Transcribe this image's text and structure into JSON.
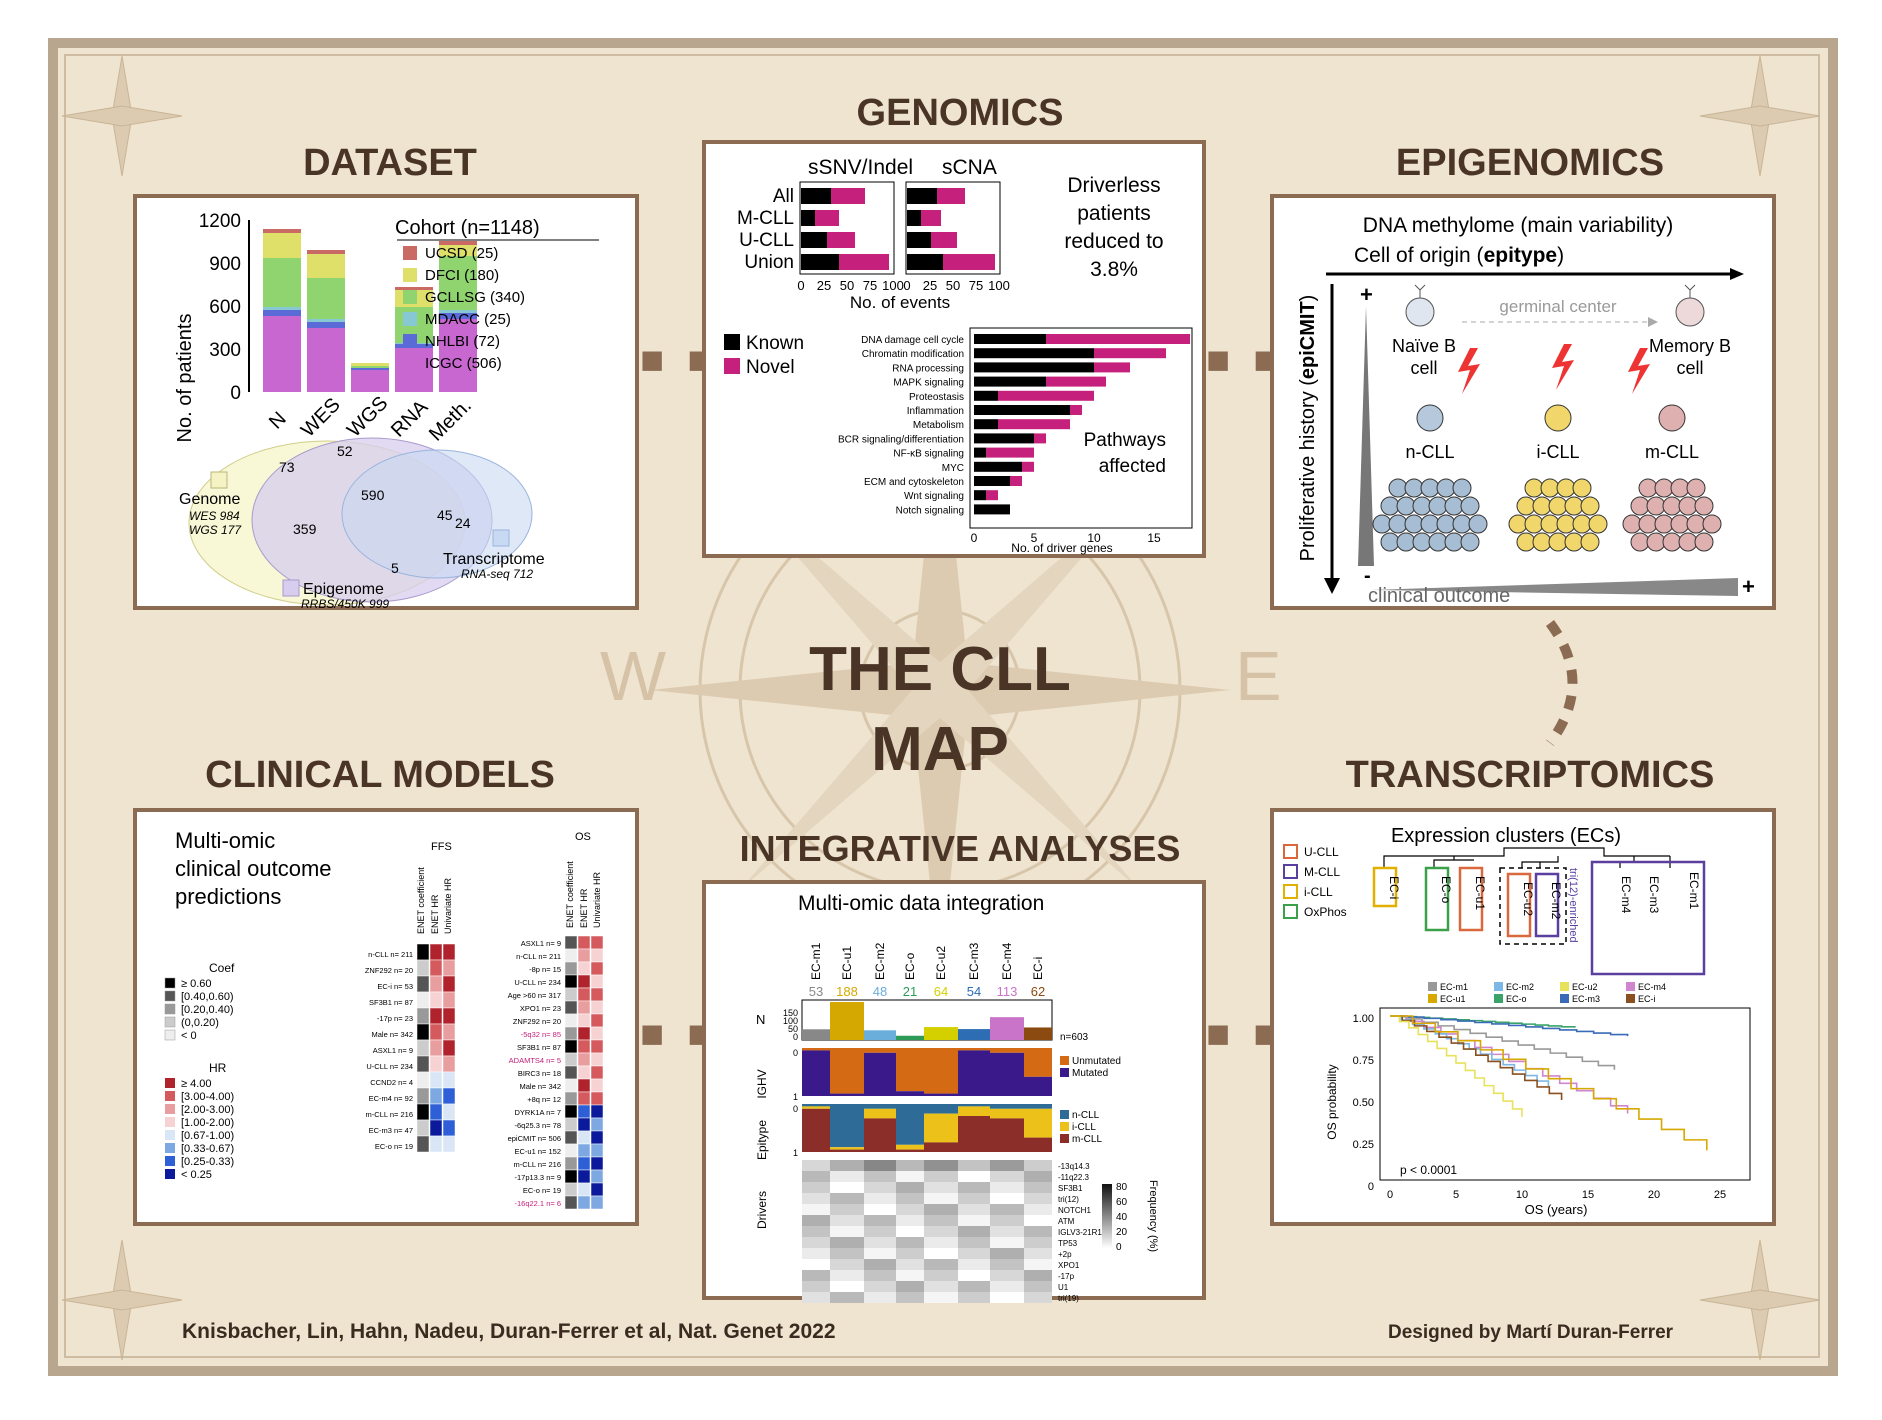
{
  "titles": {
    "dataset": "DATASET",
    "genomics": "GENOMICS",
    "epigenomics": "EPIGENOMICS",
    "clinical": "CLINICAL MODELS",
    "integrative": "INTEGRATIVE ANALYSES",
    "transcriptomics": "TRANSCRIPTOMICS",
    "center_line1": "THE CLL",
    "center_line2": "MAP"
  },
  "credits": {
    "left": "Knisbacher, Lin, Hahn, Nadeu, Duran-Ferrer et al, Nat. Genet 2022",
    "right": "Designed by Martí Duran-Ferrer"
  },
  "dataset": {
    "ylabel": "No. of patients",
    "yticks": [
      "1200",
      "900",
      "600",
      "300",
      "0"
    ],
    "categories": [
      "N",
      "WES",
      "WGS",
      "RNA",
      "Meth."
    ],
    "legend_title": "Cohort (n=1148)",
    "legend": [
      {
        "label": "UCSD (25)",
        "color": "#c96a64"
      },
      {
        "label": "DFCI (180)",
        "color": "#dfe06a"
      },
      {
        "label": "GCLLSG (340)",
        "color": "#8fd46f"
      },
      {
        "label": "MDACC (25)",
        "color": "#86c9d3"
      },
      {
        "label": "NHLBI (72)",
        "color": "#5a6ad6"
      },
      {
        "label": "ICGC (506)",
        "color": "#c867cf"
      }
    ],
    "venn": {
      "genome": "Genome",
      "genome_sub1": "WES 984",
      "genome_sub2": "WGS 177",
      "epigenome": "Epigenome",
      "epigenome_sub": "RRBS/450K 999",
      "transcriptome": "Transcriptome",
      "transcriptome_sub": "RNA-seq 712",
      "n73": "73",
      "n52": "52",
      "n590": "590",
      "n359": "359",
      "n45": "45",
      "n24": "24",
      "n5": "5"
    }
  },
  "genomics": {
    "col1": "sSNV/Indel",
    "col2": "sCNA",
    "rows": [
      "All",
      "M-CLL",
      "U-CLL",
      "Union"
    ],
    "xticks": [
      "0",
      "25",
      "50",
      "75",
      "100"
    ],
    "xlabel": "No. of events",
    "note": "Driverless patients reduced to 3.8%",
    "note1": "Driverless",
    "note2": "patients",
    "note3": "reduced to",
    "note4": "3.8%",
    "legend_known": "Known",
    "legend_novel": "Novel",
    "pathways": [
      "DNA damage cell cycle",
      "Chromatin modification",
      "RNA processing",
      "MAPK signaling",
      "Proteostasis",
      "Inflammation",
      "Metabolism",
      "BCR signaling/differentiation",
      "NF-κB signaling",
      "MYC",
      "ECM and cytoskeleton",
      "Wnt signaling",
      "Notch signaling"
    ],
    "pathways_label1": "Pathways",
    "pathways_label2": "affected",
    "pathway_xticks": [
      "0",
      "5",
      "10",
      "15"
    ],
    "pathway_xlabel": "No. of driver genes"
  },
  "epigenomics": {
    "title1": "DNA methylome (main variability)",
    "title2_pre": "Cell of origin (",
    "title2_bold": "epitype",
    "title2_post": ")",
    "yaxis_pre": "Proliferative history (",
    "yaxis_bold": "epiCMIT",
    "yaxis_post": ")",
    "germinal": "germinal center",
    "naive1": "Naïve B",
    "naive2": "cell",
    "memory1": "Memory B",
    "memory2": "cell",
    "ncll": "n-CLL",
    "icll": "i-CLL",
    "mcll": "m-CLL",
    "outcome": "clinical outcome",
    "plus": "+",
    "minus": "-"
  },
  "clinical": {
    "title1": "Multi-omic",
    "title2": "clinical outcome",
    "title3": "predictions",
    "ffs": "FFS",
    "os": "OS",
    "col_enet": "ENET coefficient",
    "col_hr": "ENET HR",
    "col_uhr": "Univariate HR",
    "coef_title": "Coef",
    "coef_items": [
      "≥ 0.60",
      "[0.40,0.60)",
      "[0.20,0.40)",
      "(0,0.20)",
      "< 0"
    ],
    "hr_title": "HR",
    "hr_items": [
      "≥ 4.00",
      "[3.00-4.00)",
      "[2.00-3.00)",
      "[1.00-2.00)",
      "[0.67-1.00)",
      "[0.33-0.67)",
      "[0.25-0.33)",
      "< 0.25"
    ],
    "ffs_rows": [
      "n-CLL  n= 211",
      "ZNF292  n= 20",
      "EC-i  n= 53",
      "SF3B1  n= 87",
      "-17p  n= 23",
      "Male  n= 342",
      "ASXL1  n= 9",
      "U-CLL  n= 234",
      "CCND2  n= 4",
      "EC-m4  n= 92",
      "m-CLL  n= 216",
      "EC-m3  n= 47",
      "EC-o  n= 19"
    ],
    "os_rows": [
      "ASXL1  n= 9",
      "n-CLL  n= 211",
      "-8p  n= 15",
      "U-CLL  n= 234",
      "Age >60  n= 317",
      "XPO1  n= 23",
      "ZNF292  n= 20",
      "-5q32  n= 85",
      "SF3B1  n= 87",
      "ADAMTS4  n= 5",
      "BIRC3  n= 18",
      "Male  n= 342",
      "+8q  n= 12",
      "DYRK1A  n= 7",
      "-6q25.3  n= 78",
      "epiCMIT  n= 506",
      "EC-u1  n= 152",
      "m-CLL  n= 216",
      "-17p13.3  n= 9",
      "EC-o  n= 19",
      "-16q22.1  n= 6"
    ]
  },
  "integrative": {
    "title": "Multi-omic data integration",
    "clusters": [
      "EC-m1",
      "EC-u1",
      "EC-m2",
      "EC-o",
      "EC-u2",
      "EC-m3",
      "EC-m4",
      "EC-i"
    ],
    "counts": [
      "53",
      "188",
      "48",
      "21",
      "64",
      "54",
      "113",
      "62"
    ],
    "count_colors": [
      "#888888",
      "#d4a800",
      "#6aaedc",
      "#2e9a58",
      "#d4d000",
      "#2c6db3",
      "#c974c8",
      "#8b4a10"
    ],
    "n_label": "N",
    "n_ticks": [
      "150",
      "100",
      "50",
      "0"
    ],
    "n_total": "n=603",
    "ighv": "IGHV",
    "unmutated": "Unmutated",
    "mutated": "Mutated",
    "epitype": "Epitype",
    "ncll": "n-CLL",
    "icll": "i-CLL",
    "mcll": "m-CLL",
    "drivers": "Drivers",
    "driver_rows": [
      "-13q14.3",
      "-11q22.3",
      "SF3B1",
      "tri(12)",
      "NOTCH1",
      "ATM",
      "IGLV3-21R110",
      "TP53",
      "+2p",
      "XPO1",
      "-17p",
      "U1",
      "tri(19)"
    ],
    "freq_label": "Frequency (%)",
    "freq_ticks": [
      "80",
      "60",
      "40",
      "20",
      "0"
    ],
    "bar_ticks": [
      "0",
      "1"
    ]
  },
  "transcriptomics": {
    "title": "Expression clusters (ECs)",
    "legend": [
      {
        "label": "U-CLL",
        "color": "#d9683c"
      },
      {
        "label": "M-CLL",
        "color": "#5a3fa0"
      },
      {
        "label": "i-CLL",
        "color": "#e2b000"
      },
      {
        "label": "OxPhos",
        "color": "#3aa04a"
      }
    ],
    "tree_leaves": [
      "EC-i",
      "EC-o",
      "EC-u1",
      "EC-u2",
      "EC-m2",
      "EC-m4",
      "EC-m3",
      "EC-m1"
    ],
    "tri12": "tri(12)-enriched",
    "km_legend": [
      {
        "label": "EC-m1",
        "color": "#999999"
      },
      {
        "label": "EC-m2",
        "color": "#7db7e6"
      },
      {
        "label": "EC-u2",
        "color": "#e8e25a"
      },
      {
        "label": "EC-m4",
        "color": "#cf86cf"
      },
      {
        "label": "EC-u1",
        "color": "#d6a800"
      },
      {
        "label": "EC-o",
        "color": "#3aa36a"
      },
      {
        "label": "EC-m3",
        "color": "#3a6ab8"
      },
      {
        "label": "EC-i",
        "color": "#8b5020"
      }
    ],
    "ylabel": "OS probability",
    "yticks": [
      "1.00",
      "0.75",
      "0.50",
      "0.25",
      "0"
    ],
    "xlabel": "OS (years)",
    "xticks": [
      "0",
      "5",
      "10",
      "15",
      "20",
      "25"
    ],
    "pval": "p < 0.0001"
  }
}
